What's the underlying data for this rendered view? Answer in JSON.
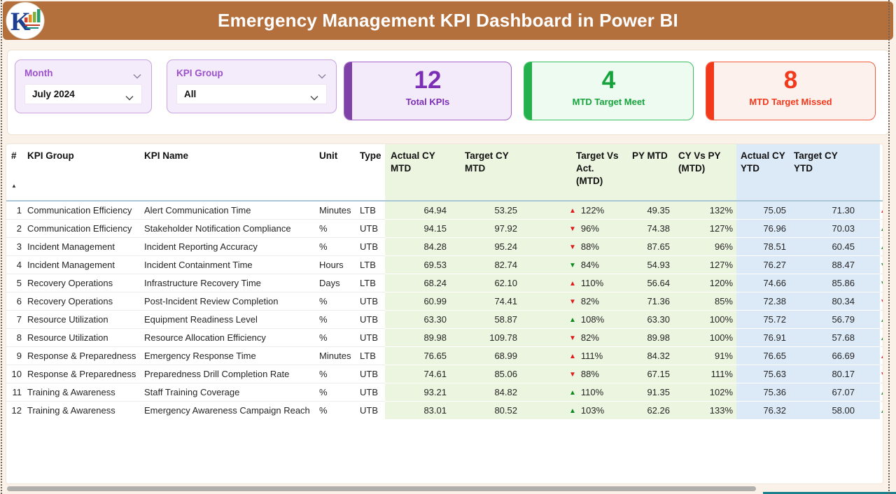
{
  "colors": {
    "header_bg": "#b3703d",
    "kpi_purple": "#7b2fb5",
    "kpi_green": "#16a33c",
    "kpi_red": "#f2391b",
    "arrow_red": "#e01a1a",
    "arrow_green": "#0b8a1e",
    "col_green_bg": "#ebf5df",
    "col_blue_bg": "#dce9f7"
  },
  "header": {
    "title": "Emergency Management KPI Dashboard in Power BI"
  },
  "filters": [
    {
      "label": "Month",
      "value": "July 2024"
    },
    {
      "label": "KPI Group",
      "value": "All"
    }
  ],
  "kpi_cards": [
    {
      "value": "12",
      "label": "Total KPIs"
    },
    {
      "value": "4",
      "label": "MTD Target Meet"
    },
    {
      "value": "8",
      "label": "MTD Target Missed"
    }
  ],
  "table": {
    "sort_icon": "▲",
    "columns": [
      "#",
      "KPI Group",
      "KPI Name",
      "Unit",
      "Type",
      "Actual CY MTD",
      "Target CY MTD",
      "Target Vs Act. (MTD)",
      "PY MTD",
      "CY Vs PY (MTD)",
      "Actual CY YTD",
      "Target CY YTD",
      ""
    ],
    "rows": [
      {
        "num": "1",
        "group": "Communication Efficiency",
        "name": "Alert Communication Time",
        "unit": "Minutes",
        "type": "LTB",
        "actual_mtd": "64.94",
        "target_mtd": "53.25",
        "tva": {
          "dir": "up",
          "color": "red",
          "pct": "122%"
        },
        "py_mtd": "49.35",
        "cy_vs_py": "132%",
        "actual_ytd": "75.05",
        "target_ytd": "71.30",
        "ytd": {
          "dir": "up",
          "color": "red"
        }
      },
      {
        "num": "2",
        "group": "Communication Efficiency",
        "name": "Stakeholder Notification Compliance",
        "unit": "%",
        "type": "UTB",
        "actual_mtd": "94.15",
        "target_mtd": "97.92",
        "tva": {
          "dir": "down",
          "color": "red",
          "pct": "96%"
        },
        "py_mtd": "74.38",
        "cy_vs_py": "127%",
        "actual_ytd": "76.96",
        "target_ytd": "70.03",
        "ytd": {
          "dir": "up",
          "color": "green"
        }
      },
      {
        "num": "3",
        "group": "Incident Management",
        "name": "Incident Reporting Accuracy",
        "unit": "%",
        "type": "UTB",
        "actual_mtd": "84.28",
        "target_mtd": "95.24",
        "tva": {
          "dir": "down",
          "color": "red",
          "pct": "88%"
        },
        "py_mtd": "87.65",
        "cy_vs_py": "96%",
        "actual_ytd": "78.51",
        "target_ytd": "60.45",
        "ytd": {
          "dir": "up",
          "color": "green"
        }
      },
      {
        "num": "4",
        "group": "Incident Management",
        "name": "Incident Containment Time",
        "unit": "Hours",
        "type": "LTB",
        "actual_mtd": "69.53",
        "target_mtd": "82.74",
        "tva": {
          "dir": "down",
          "color": "green",
          "pct": "84%"
        },
        "py_mtd": "54.93",
        "cy_vs_py": "127%",
        "actual_ytd": "76.27",
        "target_ytd": "88.47",
        "ytd": {
          "dir": "down",
          "color": "green"
        }
      },
      {
        "num": "5",
        "group": "Recovery Operations",
        "name": "Infrastructure Recovery Time",
        "unit": "Days",
        "type": "LTB",
        "actual_mtd": "68.24",
        "target_mtd": "62.10",
        "tva": {
          "dir": "up",
          "color": "red",
          "pct": "110%"
        },
        "py_mtd": "56.64",
        "cy_vs_py": "120%",
        "actual_ytd": "74.66",
        "target_ytd": "85.86",
        "ytd": {
          "dir": "down",
          "color": "green"
        }
      },
      {
        "num": "6",
        "group": "Recovery Operations",
        "name": "Post-Incident Review Completion",
        "unit": "%",
        "type": "UTB",
        "actual_mtd": "60.99",
        "target_mtd": "74.41",
        "tva": {
          "dir": "down",
          "color": "red",
          "pct": "82%"
        },
        "py_mtd": "71.36",
        "cy_vs_py": "85%",
        "actual_ytd": "72.38",
        "target_ytd": "80.34",
        "ytd": {
          "dir": "down",
          "color": "red"
        }
      },
      {
        "num": "7",
        "group": "Resource Utilization",
        "name": "Equipment Readiness Level",
        "unit": "%",
        "type": "UTB",
        "actual_mtd": "63.30",
        "target_mtd": "58.87",
        "tva": {
          "dir": "up",
          "color": "green",
          "pct": "108%"
        },
        "py_mtd": "63.30",
        "cy_vs_py": "100%",
        "actual_ytd": "75.72",
        "target_ytd": "56.79",
        "ytd": {
          "dir": "up",
          "color": "green"
        }
      },
      {
        "num": "8",
        "group": "Resource Utilization",
        "name": "Resource Allocation Efficiency",
        "unit": "%",
        "type": "UTB",
        "actual_mtd": "89.98",
        "target_mtd": "109.78",
        "tva": {
          "dir": "down",
          "color": "red",
          "pct": "82%"
        },
        "py_mtd": "89.98",
        "cy_vs_py": "100%",
        "actual_ytd": "76.91",
        "target_ytd": "57.68",
        "ytd": {
          "dir": "up",
          "color": "green"
        }
      },
      {
        "num": "9",
        "group": "Response & Preparedness",
        "name": "Emergency Response Time",
        "unit": "Minutes",
        "type": "LTB",
        "actual_mtd": "76.65",
        "target_mtd": "68.99",
        "tva": {
          "dir": "up",
          "color": "red",
          "pct": "111%"
        },
        "py_mtd": "84.32",
        "cy_vs_py": "91%",
        "actual_ytd": "76.65",
        "target_ytd": "66.69",
        "ytd": {
          "dir": "up",
          "color": "red"
        }
      },
      {
        "num": "10",
        "group": "Response & Preparedness",
        "name": "Preparedness Drill Completion Rate",
        "unit": "%",
        "type": "UTB",
        "actual_mtd": "74.61",
        "target_mtd": "85.06",
        "tva": {
          "dir": "down",
          "color": "red",
          "pct": "88%"
        },
        "py_mtd": "67.15",
        "cy_vs_py": "111%",
        "actual_ytd": "75.63",
        "target_ytd": "80.17",
        "ytd": {
          "dir": "down",
          "color": "red"
        }
      },
      {
        "num": "11",
        "group": "Training & Awareness",
        "name": "Staff Training Coverage",
        "unit": "%",
        "type": "UTB",
        "actual_mtd": "93.21",
        "target_mtd": "84.82",
        "tva": {
          "dir": "up",
          "color": "green",
          "pct": "110%"
        },
        "py_mtd": "91.35",
        "cy_vs_py": "102%",
        "actual_ytd": "75.36",
        "target_ytd": "67.07",
        "ytd": {
          "dir": "up",
          "color": "green"
        }
      },
      {
        "num": "12",
        "group": "Training & Awareness",
        "name": "Emergency Awareness Campaign Reach",
        "unit": "%",
        "type": "UTB",
        "actual_mtd": "83.01",
        "target_mtd": "80.52",
        "tva": {
          "dir": "up",
          "color": "green",
          "pct": "103%"
        },
        "py_mtd": "62.26",
        "cy_vs_py": "133%",
        "actual_ytd": "76.32",
        "target_ytd": "58.00",
        "ytd": {
          "dir": "up",
          "color": "green"
        }
      }
    ]
  }
}
